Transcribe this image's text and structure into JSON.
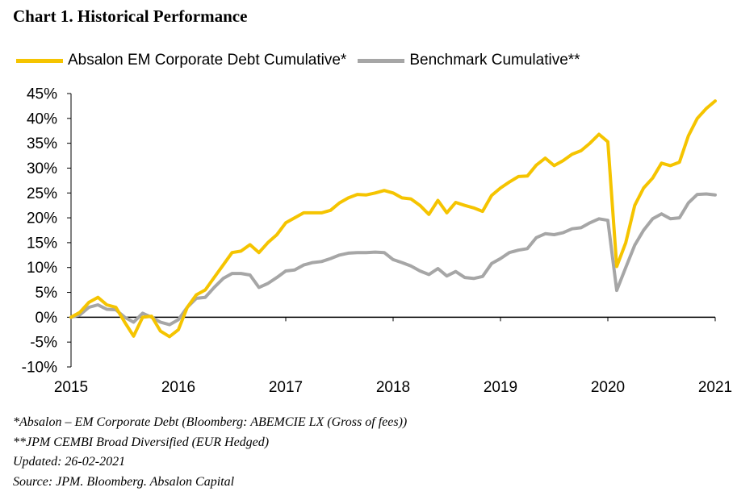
{
  "title": "Chart 1. Historical Performance",
  "notes": [
    "*Absalon – EM Corporate Debt (Bloomberg: ABEMCIE LX (Gross of fees))",
    "**JPM CEMBI Broad Diversified (EUR Hedged)",
    "Updated: 26-02-2021",
    "Source: JPM. Bloomberg. Absalon Capital"
  ],
  "chart_data": {
    "type": "line",
    "title": "Chart 1. Historical Performance",
    "xlabel": "",
    "ylabel": "",
    "xlim": [
      2015,
      2021
    ],
    "ylim": [
      -10,
      45
    ],
    "x_ticks": [
      "2015",
      "2016",
      "2017",
      "2018",
      "2019",
      "2020",
      "2021"
    ],
    "y_ticks": [
      "45%",
      "40%",
      "35%",
      "30%",
      "25%",
      "20%",
      "15%",
      "10%",
      "5%",
      "0%",
      "-5%",
      "-10%"
    ],
    "grid": false,
    "legend_position": "top",
    "series": [
      {
        "name": "Absalon EM Corporate Debt Cumulative*",
        "color": "#F5C400",
        "x": [
          2015.0,
          2015.083,
          2015.167,
          2015.25,
          2015.333,
          2015.417,
          2015.5,
          2015.583,
          2015.667,
          2015.75,
          2015.833,
          2015.917,
          2016.0,
          2016.083,
          2016.167,
          2016.25,
          2016.333,
          2016.417,
          2016.5,
          2016.583,
          2016.667,
          2016.75,
          2016.833,
          2016.917,
          2017.0,
          2017.083,
          2017.167,
          2017.25,
          2017.333,
          2017.417,
          2017.5,
          2017.583,
          2017.667,
          2017.75,
          2017.833,
          2017.917,
          2018.0,
          2018.083,
          2018.167,
          2018.25,
          2018.333,
          2018.417,
          2018.5,
          2018.583,
          2018.667,
          2018.75,
          2018.833,
          2018.917,
          2019.0,
          2019.083,
          2019.167,
          2019.25,
          2019.333,
          2019.417,
          2019.5,
          2019.583,
          2019.667,
          2019.75,
          2019.833,
          2019.917,
          2020.0,
          2020.083,
          2020.167,
          2020.25,
          2020.333,
          2020.417,
          2020.5,
          2020.583,
          2020.667,
          2020.75,
          2020.833,
          2020.917,
          2021.0
        ],
        "values": [
          0.0,
          1.0,
          3.0,
          4.0,
          2.5,
          2.0,
          -1.0,
          -3.8,
          0.0,
          0.2,
          -2.8,
          -3.9,
          -2.5,
          2.0,
          4.5,
          5.5,
          8.0,
          10.5,
          13.0,
          13.3,
          14.6,
          13.0,
          15.0,
          16.6,
          19.0,
          20.0,
          21.0,
          21.0,
          21.0,
          21.5,
          23.0,
          24.0,
          24.7,
          24.6,
          25.0,
          25.5,
          25.0,
          24.0,
          23.8,
          22.5,
          20.7,
          23.5,
          21.0,
          23.1,
          22.5,
          22.0,
          21.3,
          24.5,
          26.0,
          27.2,
          28.3,
          28.4,
          30.6,
          32.0,
          30.5,
          31.5,
          32.8,
          33.5,
          35.0,
          36.8,
          35.3,
          10.2,
          15.0,
          22.5,
          26.0,
          28.0,
          31.0,
          30.5,
          31.2,
          36.5,
          40.0,
          42.0,
          43.5
        ]
      },
      {
        "name": "Benchmark Cumulative**",
        "color": "#A6A6A6",
        "x": [
          2015.0,
          2015.083,
          2015.167,
          2015.25,
          2015.333,
          2015.417,
          2015.5,
          2015.583,
          2015.667,
          2015.75,
          2015.833,
          2015.917,
          2016.0,
          2016.083,
          2016.167,
          2016.25,
          2016.333,
          2016.417,
          2016.5,
          2016.583,
          2016.667,
          2016.75,
          2016.833,
          2016.917,
          2017.0,
          2017.083,
          2017.167,
          2017.25,
          2017.333,
          2017.417,
          2017.5,
          2017.583,
          2017.667,
          2017.75,
          2017.833,
          2017.917,
          2018.0,
          2018.083,
          2018.167,
          2018.25,
          2018.333,
          2018.417,
          2018.5,
          2018.583,
          2018.667,
          2018.75,
          2018.833,
          2018.917,
          2019.0,
          2019.083,
          2019.167,
          2019.25,
          2019.333,
          2019.417,
          2019.5,
          2019.583,
          2019.667,
          2019.75,
          2019.833,
          2019.917,
          2020.0,
          2020.083,
          2020.167,
          2020.25,
          2020.333,
          2020.417,
          2020.5,
          2020.583,
          2020.667,
          2020.75,
          2020.833,
          2020.917,
          2021.0
        ],
        "values": [
          0.0,
          0.5,
          2.0,
          2.5,
          1.6,
          1.5,
          0.0,
          -1.0,
          0.8,
          0.0,
          -1.0,
          -1.5,
          -0.5,
          2.0,
          3.8,
          4.0,
          6.0,
          7.8,
          8.8,
          8.8,
          8.5,
          6.0,
          6.8,
          8.0,
          9.3,
          9.5,
          10.5,
          11.0,
          11.2,
          11.8,
          12.5,
          12.9,
          13.0,
          13.0,
          13.1,
          13.0,
          11.6,
          11.0,
          10.3,
          9.3,
          8.6,
          9.8,
          8.3,
          9.2,
          8.0,
          7.8,
          8.2,
          10.8,
          11.8,
          13.0,
          13.5,
          13.8,
          16.0,
          16.8,
          16.6,
          17.0,
          17.8,
          18.0,
          19.0,
          19.8,
          19.5,
          5.4,
          10.0,
          14.5,
          17.5,
          19.8,
          20.8,
          19.8,
          20.0,
          23.0,
          24.7,
          24.8,
          24.6
        ]
      }
    ]
  }
}
